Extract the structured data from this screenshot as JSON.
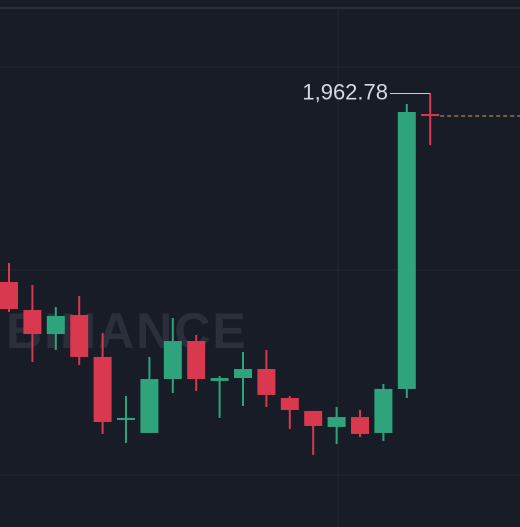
{
  "chart_data": {
    "type": "candlestick",
    "watermark": "BINANCE",
    "open": [
      1944.18,
      1941.41,
      1939.04,
      1940.92,
      1936.78,
      1930.56,
      1929.28,
      1934.6,
      1938.35,
      1934.41,
      1934.7,
      1935.59,
      1932.73,
      1931.45,
      1929.87,
      1930.85,
      1929.28,
      1933.62,
      1960.75
    ],
    "high": [
      1946.05,
      1943.88,
      1941.71,
      1942.79,
      1939.14,
      1932.93,
      1936.78,
      1940.62,
      1938.95,
      1934.9,
      1937.27,
      1937.47,
      1932.93,
      1931.45,
      1931.84,
      1931.55,
      1934.11,
      1961.74,
      1962.78
    ],
    "low": [
      1941.22,
      1936.28,
      1937.47,
      1935.99,
      1929.18,
      1928.29,
      1929.28,
      1933.22,
      1933.42,
      1930.76,
      1931.94,
      1931.84,
      1929.67,
      1927.11,
      1928.19,
      1928.88,
      1928.49,
      1932.73,
      1957.69
    ],
    "close": [
      1941.51,
      1939.04,
      1940.82,
      1936.78,
      1930.36,
      1930.76,
      1934.6,
      1938.35,
      1934.6,
      1934.7,
      1935.59,
      1933.03,
      1931.55,
      1929.97,
      1930.85,
      1929.18,
      1933.62,
      1960.95,
      1960.55
    ],
    "up_color": "#2ea37c",
    "down_color": "#d8394f",
    "last_price_color": "#8a7a3f",
    "ylim": [
      1920,
      1972
    ],
    "annotations": [
      {
        "value": 1962.78,
        "label": "1,962.78"
      }
    ]
  }
}
